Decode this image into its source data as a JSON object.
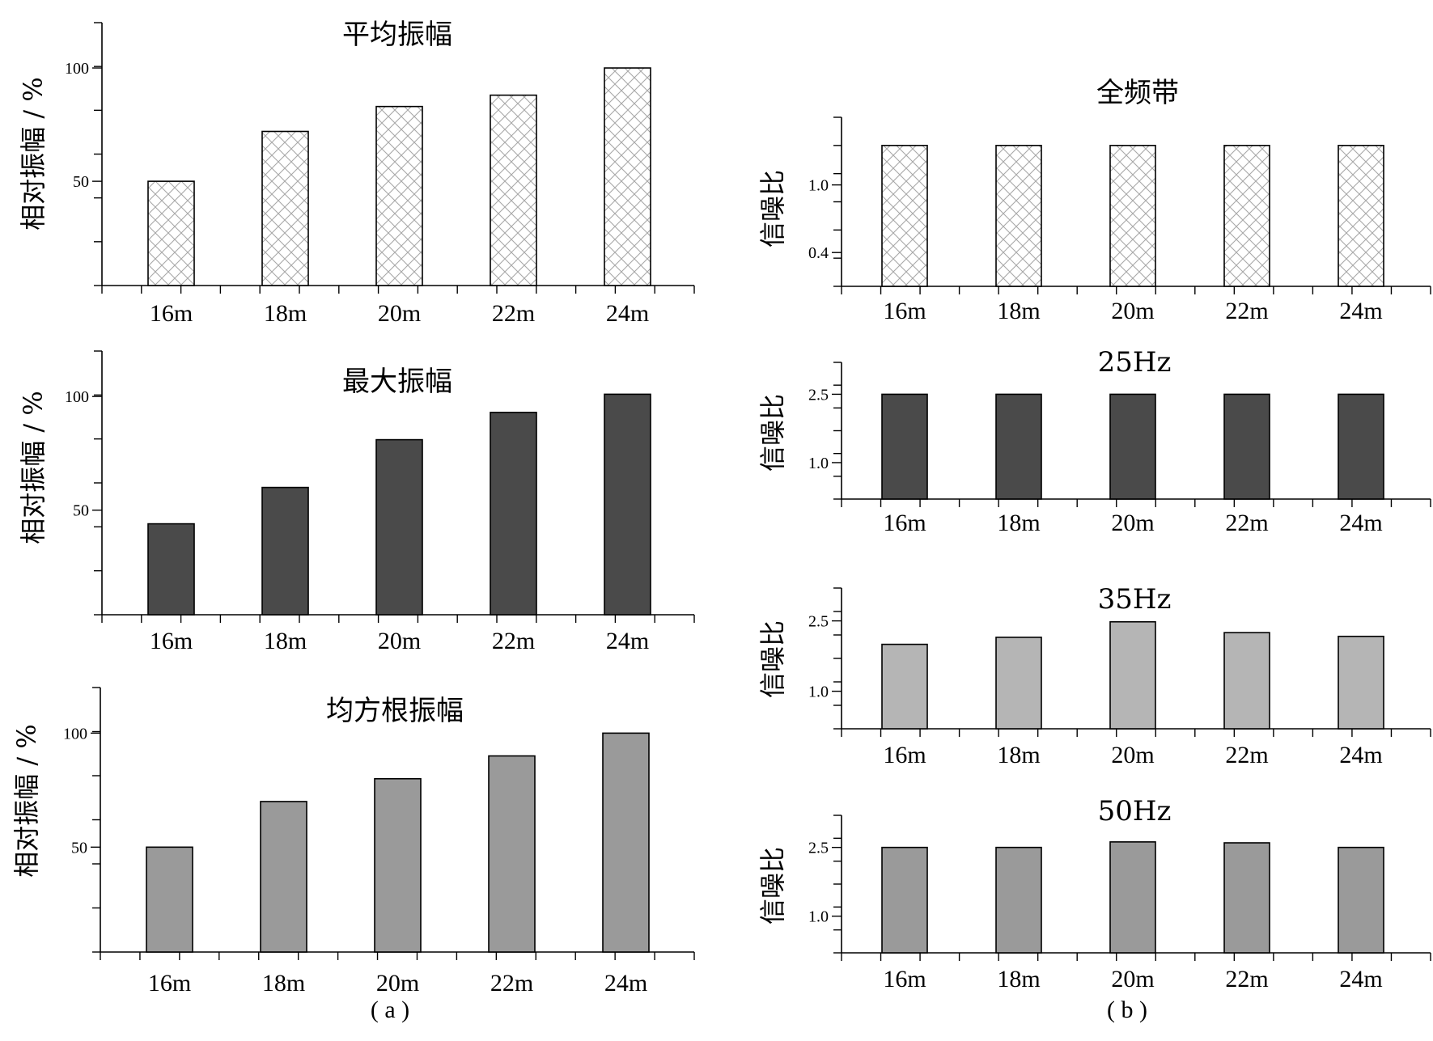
{
  "captions": {
    "left": "( a )",
    "right": "( b )"
  },
  "colors": {
    "avg_bar": "#ffffff",
    "avg_hatch": "#9a9a9a",
    "max_bar": "#4a4a4a",
    "rms_bar": "#9a9a9a",
    "snr_25_bar": "#4a4a4a",
    "snr_35_bar": "#b5b5b5",
    "snr_50_bar": "#9a9a9a"
  },
  "chart_data": [
    {
      "id": "avg",
      "type": "bar",
      "title": "平均振幅",
      "ylabel": "相对振幅 / %",
      "categories": [
        "16m",
        "18m",
        "20m",
        "22m",
        "24m"
      ],
      "values": [
        50,
        72,
        83,
        88,
        100
      ],
      "ylim": [
        4,
        120
      ],
      "yticks": [
        50,
        100
      ],
      "ytick_labels": [
        "50",
        "100"
      ],
      "fill": "hatch",
      "grid": false
    },
    {
      "id": "max",
      "type": "bar",
      "title": "最大振幅",
      "ylabel": "相对振幅 / %",
      "categories": [
        "16m",
        "18m",
        "20m",
        "22m",
        "24m"
      ],
      "values": [
        44,
        60,
        81,
        93,
        101
      ],
      "ylim": [
        4,
        120
      ],
      "yticks": [
        50,
        100
      ],
      "ytick_labels": [
        "50",
        "100"
      ],
      "fill": "#4a4a4a",
      "grid": false
    },
    {
      "id": "rms",
      "type": "bar",
      "title": "均方根振幅",
      "ylabel": "相对振幅 / %",
      "categories": [
        "16m",
        "18m",
        "20m",
        "22m",
        "24m"
      ],
      "values": [
        50,
        70,
        80,
        90,
        100
      ],
      "ylim": [
        4,
        120
      ],
      "yticks": [
        50,
        100
      ],
      "ytick_labels": [
        "50",
        "100"
      ],
      "fill": "#9a9a9a",
      "grid": false
    },
    {
      "id": "snr_full",
      "type": "bar",
      "title": "全频带",
      "ylabel": "信噪比",
      "categories": [
        "16m",
        "18m",
        "20m",
        "22m",
        "24m"
      ],
      "values": [
        1.35,
        1.35,
        1.35,
        1.35,
        1.35
      ],
      "ylim": [
        0.1,
        1.6
      ],
      "yticks": [
        0.4,
        1.0
      ],
      "ytick_labels": [
        "0.4",
        "1.0"
      ],
      "fill": "hatch",
      "grid": false
    },
    {
      "id": "snr_25",
      "type": "bar",
      "title": "25Hz",
      "ylabel": "信噪比",
      "categories": [
        "16m",
        "18m",
        "20m",
        "22m",
        "24m"
      ],
      "values": [
        2.5,
        2.5,
        2.5,
        2.5,
        2.5
      ],
      "ylim": [
        0.2,
        3.2
      ],
      "yticks": [
        1.0,
        2.5
      ],
      "ytick_labels": [
        "1.0",
        "2.5"
      ],
      "fill": "#4a4a4a",
      "grid": false
    },
    {
      "id": "snr_35",
      "type": "bar",
      "title": "35Hz",
      "ylabel": "信噪比",
      "categories": [
        "16m",
        "18m",
        "20m",
        "22m",
        "24m"
      ],
      "values": [
        2.0,
        2.15,
        2.48,
        2.25,
        2.17
      ],
      "ylim": [
        0.2,
        3.2
      ],
      "yticks": [
        1.0,
        2.5
      ],
      "ytick_labels": [
        "1.0",
        "2.5"
      ],
      "fill": "#b5b5b5",
      "grid": false
    },
    {
      "id": "snr_50",
      "type": "bar",
      "title": "50Hz",
      "ylabel": "信噪比",
      "categories": [
        "16m",
        "18m",
        "20m",
        "22m",
        "24m"
      ],
      "values": [
        2.5,
        2.5,
        2.62,
        2.6,
        2.5
      ],
      "ylim": [
        0.2,
        3.2
      ],
      "yticks": [
        1.0,
        2.5
      ],
      "ytick_labels": [
        "1.0",
        "2.5"
      ],
      "fill": "#9a9a9a",
      "grid": false
    }
  ]
}
